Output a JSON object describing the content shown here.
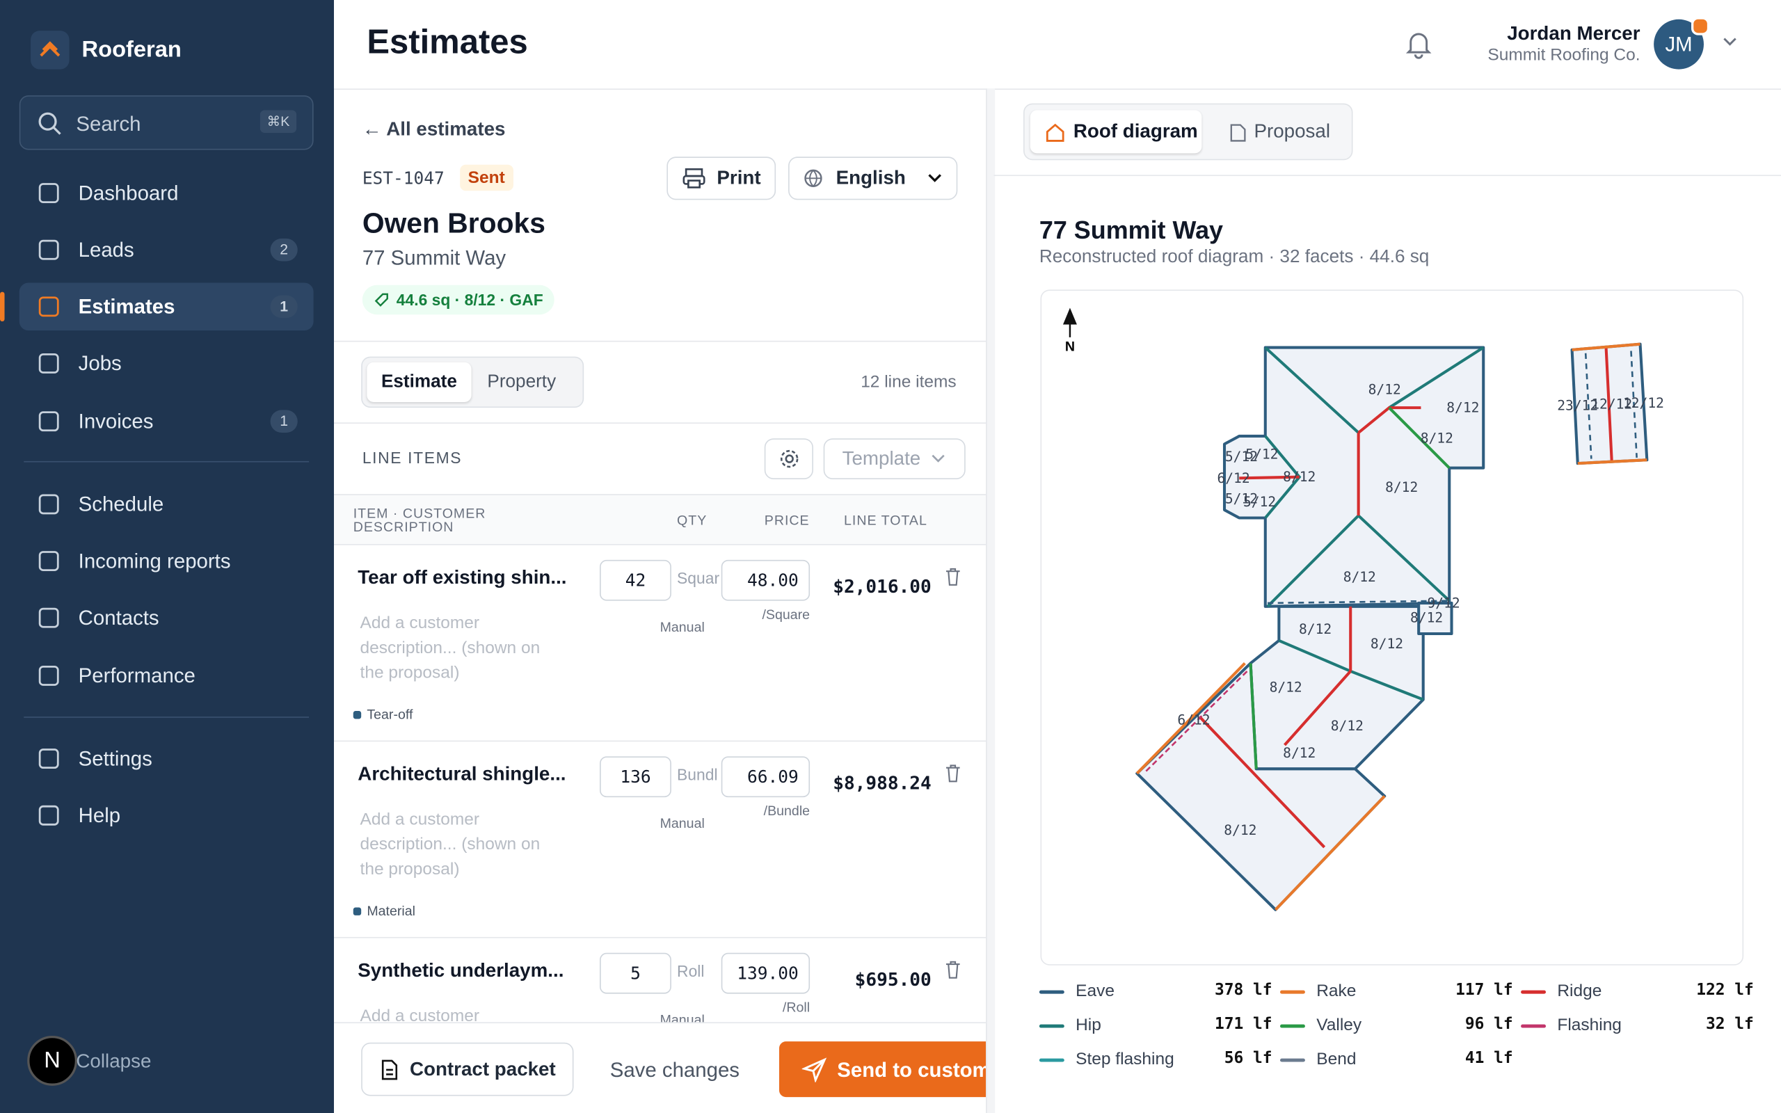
{
  "sidebar": {
    "brand": "Rooferan",
    "search": "Search",
    "shortcut": "⌘K",
    "nav": [
      {
        "label": "Dashboard"
      },
      {
        "label": "Leads",
        "badge": 2
      },
      {
        "label": "Estimates",
        "badge": 1
      },
      {
        "label": "Jobs"
      },
      {
        "label": "Invoices",
        "badge": 1
      },
      {
        "label": "Schedule"
      },
      {
        "label": "Incoming reports"
      },
      {
        "label": "Contacts"
      },
      {
        "label": "Performance"
      },
      {
        "label": "Settings"
      },
      {
        "label": "Help"
      }
    ],
    "dev_badge": "N",
    "collapse": "Collapse"
  },
  "header": {
    "title": "Estimates",
    "user": {
      "name": "Jordan Mercer",
      "company": "Summit Roofing Co.",
      "initials": "JM"
    }
  },
  "estimate": {
    "back": "All estimates",
    "number": "EST-1047",
    "status": "Sent",
    "print": "Print",
    "language": "English",
    "customer": "Owen Brooks",
    "address": "77 Summit Way",
    "summary": "44.6 sq · 8/12 · GAF",
    "tabs": [
      "Estimate",
      "Property"
    ],
    "item_count": "12 line items",
    "section": "LINE ITEMS",
    "template": "Template",
    "columns": [
      "ITEM · CUSTOMER DESCRIPTION",
      "QTY",
      "PRICE",
      "LINE TOTAL"
    ],
    "items": [
      {
        "name": "Tear off existing shin...",
        "qty": 42,
        "unit": "Squar",
        "price": "48.00",
        "per": "/Square",
        "source": "Manual",
        "total": "$2,016.00",
        "placeholder": "Add a customer description... (shown on the proposal)",
        "tag": "Tear-off"
      },
      {
        "name": "Architectural shingle...",
        "qty": 136,
        "unit": "Bundl",
        "price": "66.09",
        "per": "/Bundle",
        "source": "Manual",
        "total": "$8,988.24",
        "placeholder": "Add a customer description... (shown on the proposal)",
        "tag": "Material"
      },
      {
        "name": "Synthetic underlaym...",
        "qty": 5,
        "unit": "Roll",
        "price": "139.00",
        "per": "/Roll",
        "source": "Manual",
        "total": "$695.00",
        "placeholder": "Add a customer description... (shown on the proposal)"
      }
    ],
    "footer": {
      "contract": "Contract packet",
      "save": "Save changes",
      "send": "Send to customer"
    }
  },
  "diagram": {
    "tabs": [
      "Roof diagram",
      "Proposal"
    ],
    "title": "77 Summit Way",
    "subtitle": "Reconstructed roof diagram · 32 facets · 44.6 sq",
    "north": "N",
    "facet_labels": [
      "8/12",
      "8/12",
      "8/12",
      "8/12",
      "8/12",
      "8/12",
      "8/12",
      "8/12",
      "8/12",
      "8/12",
      "8/12",
      "5/12",
      "6/12",
      "5/12",
      "5/12",
      "8/12",
      "5/12",
      "9/12",
      "8/12",
      "6/12",
      "23/12",
      "12/12",
      "12/12"
    ],
    "legend": [
      {
        "name": "Eave",
        "color": "#2e5d7f",
        "value": "378 lf"
      },
      {
        "name": "Rake",
        "color": "#e8792b",
        "value": "117 lf"
      },
      {
        "name": "Ridge",
        "color": "#d62e2e",
        "value": "122 lf"
      },
      {
        "name": "Hip",
        "color": "#1f7a78",
        "value": "171 lf"
      },
      {
        "name": "Valley",
        "color": "#2a9a46",
        "value": "96 lf"
      },
      {
        "name": "Flashing",
        "color": "#c2356b",
        "value": "32 lf"
      },
      {
        "name": "Step flashing",
        "color": "#2a9aa0",
        "value": "56 lf"
      },
      {
        "name": "Bend",
        "color": "#6b7b8f",
        "value": "41 lf"
      }
    ]
  }
}
